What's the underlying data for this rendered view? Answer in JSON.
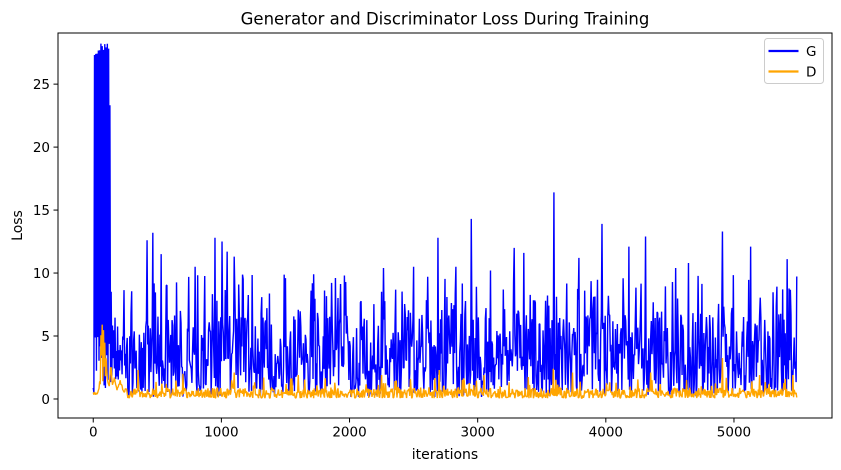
{
  "figure": {
    "background": "#ffffff"
  },
  "chart_data": {
    "type": "line",
    "title": "Generator and Discriminator Loss During Training",
    "xlabel": "iterations",
    "ylabel": "Loss",
    "grid": false,
    "xlim": [
      -275,
      5765
    ],
    "ylim": [
      -1.51,
      29.06
    ],
    "xticks": [
      0,
      1000,
      2000,
      3000,
      4000,
      5000
    ],
    "yticks": [
      0,
      5,
      10,
      15,
      20,
      25
    ],
    "x_range_data": [
      0,
      5490
    ],
    "sample_step": 5,
    "legend": {
      "position": "upper right",
      "border_color": "#cccccc",
      "background": "#ffffff",
      "entries": [
        {
          "label": "G",
          "color": "#0000ff"
        },
        {
          "label": "D",
          "color": "#ffa500"
        }
      ]
    },
    "series": [
      {
        "name": "G",
        "color": "#0000ff",
        "description": "Generator loss: huge initial spike to ~27.9 before iteration 130, then dense noisy band ~0.5-7 with frequent spikes to 8-10 and occasional spikes to 11-16.4",
        "initial_keypoints": [
          [
            0,
            1.0
          ],
          [
            6,
            0.5
          ],
          [
            10,
            27.4
          ],
          [
            52,
            27.4
          ],
          [
            56,
            0.4
          ],
          [
            60,
            27.9
          ],
          [
            128,
            27.9
          ],
          [
            132,
            19.2
          ],
          [
            135,
            15.2
          ],
          [
            141,
            7.5
          ],
          [
            148,
            4.8
          ],
          [
            155,
            9.3
          ],
          [
            163,
            3.6
          ],
          [
            172,
            7.3
          ],
          [
            182,
            2.7
          ],
          [
            192,
            6.4
          ],
          [
            205,
            2.3
          ],
          [
            215,
            5.6
          ],
          [
            228,
            2.0
          ],
          [
            236,
            14.0
          ],
          [
            242,
            6.0
          ],
          [
            252,
            2.8
          ],
          [
            260,
            4.0
          ]
        ],
        "band": {
          "lo": 0.55,
          "hi": 6.8,
          "pow": 1.2,
          "spike_hi": 9.9,
          "spike_prob": 0.12,
          "dip_prob": 0.05,
          "dip_lo": 0.15
        },
        "spikes": [
          [
            420,
            12.6
          ],
          [
            465,
            13.2
          ],
          [
            530,
            11.5
          ],
          [
            795,
            10.5
          ],
          [
            950,
            12.8
          ],
          [
            1005,
            12.5
          ],
          [
            1045,
            11.7
          ],
          [
            1100,
            11.3
          ],
          [
            1500,
            9.6
          ],
          [
            1720,
            9.9
          ],
          [
            1960,
            9.8
          ],
          [
            2265,
            10.4
          ],
          [
            2500,
            10.5
          ],
          [
            2690,
            12.8
          ],
          [
            2830,
            10.5
          ],
          [
            2950,
            14.3
          ],
          [
            3100,
            10.2
          ],
          [
            3285,
            12.0
          ],
          [
            3360,
            11.6
          ],
          [
            3594,
            16.4
          ],
          [
            3790,
            11.2
          ],
          [
            3970,
            13.9
          ],
          [
            4180,
            12.1
          ],
          [
            4310,
            12.9
          ],
          [
            4545,
            10.4
          ],
          [
            4645,
            10.8
          ],
          [
            4910,
            13.3
          ],
          [
            5130,
            12.1
          ],
          [
            5415,
            11.1
          ]
        ]
      },
      {
        "name": "D",
        "color": "#ffa500",
        "description": "Discriminator loss: spike to ~6.1 near iteration 60, then dense low band ~0.05-0.9 with small bumps to ~1.5-2.4 and a spike to ~3.25 near iteration 4910",
        "initial_keypoints": [
          [
            0,
            0.45
          ],
          [
            25,
            0.4
          ],
          [
            45,
            0.8
          ],
          [
            52,
            1.6
          ],
          [
            58,
            4.8
          ],
          [
            62,
            6.1
          ],
          [
            68,
            5.9
          ],
          [
            75,
            5.2
          ],
          [
            82,
            5.5
          ],
          [
            90,
            4.6
          ],
          [
            97,
            4.0
          ],
          [
            104,
            2.6
          ],
          [
            112,
            1.4
          ],
          [
            125,
            1.0
          ],
          [
            138,
            2.8
          ],
          [
            148,
            1.2
          ],
          [
            165,
            1.6
          ],
          [
            185,
            0.8
          ],
          [
            210,
            1.4
          ],
          [
            235,
            0.6
          ],
          [
            260,
            0.8
          ]
        ],
        "band": {
          "lo": 0.06,
          "hi": 0.88,
          "pow": 1.25,
          "spike_hi": 1.75,
          "spike_prob": 0.1,
          "dip_prob": 0.0,
          "dip_lo": 0.03
        },
        "spikes": [
          [
            350,
            2.3
          ],
          [
            700,
            2.0
          ],
          [
            1100,
            2.1
          ],
          [
            1600,
            1.9
          ],
          [
            2250,
            1.9
          ],
          [
            2700,
            2.3
          ],
          [
            3050,
            1.9
          ],
          [
            3590,
            2.4
          ],
          [
            3740,
            2.1
          ],
          [
            4350,
            2.1
          ],
          [
            4910,
            3.25
          ],
          [
            5200,
            1.9
          ],
          [
            5460,
            1.9
          ]
        ]
      }
    ]
  }
}
